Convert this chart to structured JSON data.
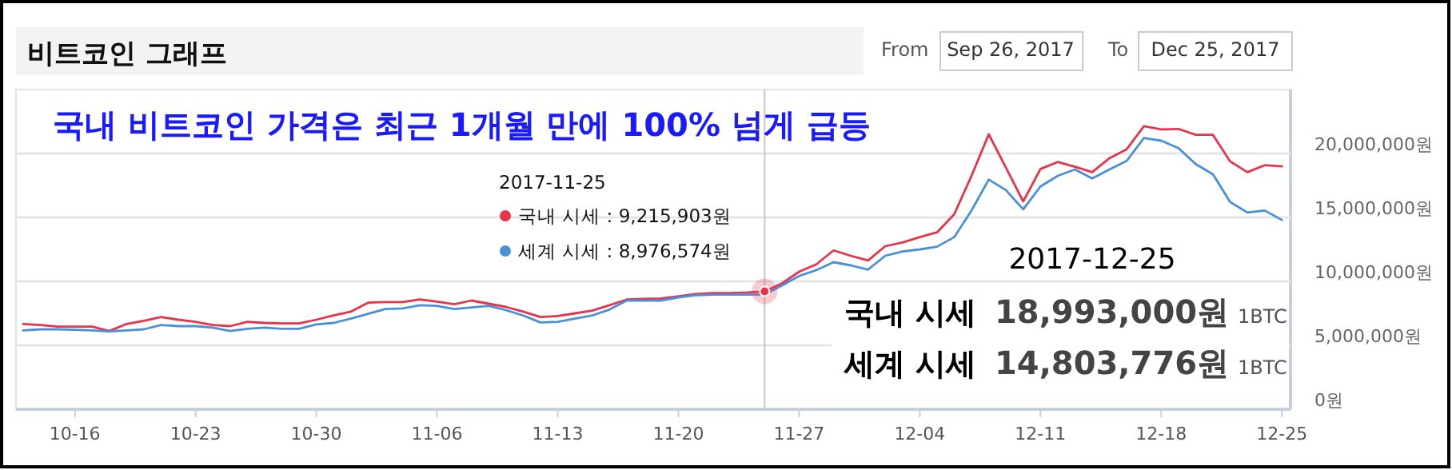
{
  "chart_data": {
    "type": "line",
    "title": "비트코인 그래프",
    "subtitle": "국내 비트코인 가격은 최근 1개월 만에 100% 넘게 급등",
    "x": [
      "2017-10-13",
      "2017-10-14",
      "2017-10-15",
      "2017-10-16",
      "2017-10-17",
      "2017-10-18",
      "2017-10-19",
      "2017-10-20",
      "2017-10-21",
      "2017-10-22",
      "2017-10-23",
      "2017-10-24",
      "2017-10-25",
      "2017-10-26",
      "2017-10-27",
      "2017-10-28",
      "2017-10-29",
      "2017-10-30",
      "2017-10-31",
      "2017-11-01",
      "2017-11-02",
      "2017-11-03",
      "2017-11-04",
      "2017-11-05",
      "2017-11-06",
      "2017-11-07",
      "2017-11-08",
      "2017-11-09",
      "2017-11-10",
      "2017-11-11",
      "2017-11-12",
      "2017-11-13",
      "2017-11-14",
      "2017-11-15",
      "2017-11-16",
      "2017-11-17",
      "2017-11-18",
      "2017-11-19",
      "2017-11-20",
      "2017-11-21",
      "2017-11-22",
      "2017-11-23",
      "2017-11-24",
      "2017-11-25",
      "2017-11-26",
      "2017-11-27",
      "2017-11-28",
      "2017-11-29",
      "2017-11-30",
      "2017-12-01",
      "2017-12-02",
      "2017-12-03",
      "2017-12-04",
      "2017-12-05",
      "2017-12-06",
      "2017-12-07",
      "2017-12-08",
      "2017-12-09",
      "2017-12-10",
      "2017-12-11",
      "2017-12-12",
      "2017-12-13",
      "2017-12-14",
      "2017-12-15",
      "2017-12-16",
      "2017-12-17",
      "2017-12-18",
      "2017-12-19",
      "2017-12-20",
      "2017-12-21",
      "2017-12-22",
      "2017-12-23",
      "2017-12-24",
      "2017-12-25"
    ],
    "series": [
      {
        "color": "#e8334a",
        "values": [
          6670000.0,
          6580000.0,
          6460000.0,
          6460000.0,
          6460000.0,
          6120000.0,
          6670000.0,
          6920000.0,
          7210000.0,
          7000000.0,
          6830000.0,
          6580000.0,
          6500000.0,
          6830000.0,
          6750000.0,
          6710000.0,
          6710000.0,
          7000000.0,
          7330000.0,
          7630000.0,
          8330000.0,
          8380000.0,
          8380000.0,
          8580000.0,
          8420000.0,
          8210000.0,
          8500000.0,
          8250000.0,
          8000000.0,
          7630000.0,
          7210000.0,
          7290000.0,
          7500000.0,
          7710000.0,
          8130000.0,
          8580000.0,
          8630000.0,
          8670000.0,
          8830000.0,
          9000000.0,
          9080000.0,
          9080000.0,
          9130000.0,
          9215903,
          9830000.0,
          10750000.0,
          11330000.0,
          12420000.0,
          12000000.0,
          11630000.0,
          12750000.0,
          13040000.0,
          13460000.0,
          13830000.0,
          15250000.0,
          18250000.0,
          21500000.0,
          18880000.0,
          16250000.0,
          18790000.0,
          19330000.0,
          18960000.0,
          18540000.0,
          19630000.0,
          20330000.0,
          22130000.0,
          21880000.0,
          21920000.0,
          21460000.0,
          21460000.0,
          19380000.0,
          18540000.0,
          19080000.0,
          18993000
        ]
      },
      {
        "color": "#4a90d9",
        "values": [
          6170000.0,
          6250000.0,
          6250000.0,
          6210000.0,
          6170000.0,
          6080000.0,
          6170000.0,
          6250000.0,
          6580000.0,
          6500000.0,
          6500000.0,
          6380000.0,
          6120000.0,
          6290000.0,
          6380000.0,
          6290000.0,
          6290000.0,
          6630000.0,
          6750000.0,
          7080000.0,
          7460000.0,
          7830000.0,
          7880000.0,
          8130000.0,
          8080000.0,
          7830000.0,
          7960000.0,
          8080000.0,
          7750000.0,
          7330000.0,
          6790000.0,
          6830000.0,
          7080000.0,
          7330000.0,
          7790000.0,
          8500000.0,
          8500000.0,
          8500000.0,
          8750000.0,
          8920000.0,
          8960000.0,
          8960000.0,
          8960000.0,
          8976574,
          9670000.0,
          10420000.0,
          10880000.0,
          11500000.0,
          11250000.0,
          10920000.0,
          12000000.0,
          12330000.0,
          12500000.0,
          12710000.0,
          13460000.0,
          15540000.0,
          17960000.0,
          17130000.0,
          15630000.0,
          17420000.0,
          18250000.0,
          18750000.0,
          18040000.0,
          18750000.0,
          19420000.0,
          21210000.0,
          21000000.0,
          20420000.0,
          19170000.0,
          18380000.0,
          16210000.0,
          15380000.0,
          15540000.0,
          14803776
        ]
      }
    ],
    "xlim": [
      "2017-10-12T14:00",
      "2017-12-25T12:00"
    ],
    "xticks": [
      {
        "value": "2017-10-16",
        "label": "10-16"
      },
      {
        "value": "2017-10-23",
        "label": "10-23"
      },
      {
        "value": "2017-10-30",
        "label": "10-30"
      },
      {
        "value": "2017-11-06",
        "label": "11-06"
      },
      {
        "value": "2017-11-13",
        "label": "11-13"
      },
      {
        "value": "2017-11-20",
        "label": "11-20"
      },
      {
        "value": "2017-11-27",
        "label": "11-27"
      },
      {
        "value": "2017-12-04",
        "label": "12-04"
      },
      {
        "value": "2017-12-11",
        "label": "12-11"
      },
      {
        "value": "2017-12-18",
        "label": "12-18"
      },
      {
        "value": "2017-12-25",
        "label": "12-25"
      }
    ],
    "ylim": [
      0,
      25000000
    ],
    "yticks": [
      {
        "value": 0,
        "label": "0원"
      },
      {
        "value": 5000000,
        "label": "5,000,000원"
      },
      {
        "value": 10000000,
        "label": "10,000,000원"
      },
      {
        "value": 15000000,
        "label": "15,000,000원"
      },
      {
        "value": 20000000,
        "label": "20,000,000원"
      }
    ],
    "grid": "y",
    "ref_lines": [
      {
        "axis": "x",
        "value": "2017-11-25",
        "color": "#c8c8c8"
      }
    ],
    "annotations": [
      "From",
      "Sep 26, 2017",
      "To",
      "Dec 25, 2017",
      "2017-11-25",
      "국내 시세 : 9,215,903원",
      "세계 시세 : 8,976,574원",
      "2017-12-25",
      "국내 시세",
      "18,993,000원",
      "1BTC",
      "세계 시세",
      "14,803,776원",
      "1BTC"
    ]
  }
}
